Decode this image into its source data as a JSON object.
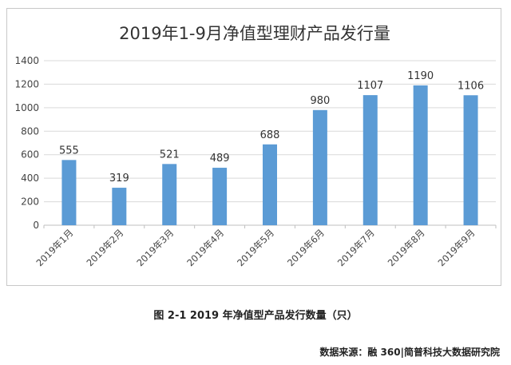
{
  "chart_data": {
    "type": "bar",
    "title": "2019年1-9月净值型理财产品发行量",
    "categories": [
      "2019年1月",
      "2019年2月",
      "2019年3月",
      "2019年4月",
      "2019年5月",
      "2019年6月",
      "2019年7月",
      "2019年8月",
      "2019年9月"
    ],
    "values": [
      555,
      319,
      521,
      489,
      688,
      980,
      1107,
      1190,
      1106
    ],
    "ylim": [
      0,
      1400
    ],
    "yticks": [
      0,
      200,
      400,
      600,
      800,
      1000,
      1200,
      1400
    ],
    "grid": true,
    "legend": "none",
    "bar_color": "#5b9bd5"
  },
  "caption": "图 2-1 2019 年净值型产品发行数量（只）",
  "source": "数据来源：融 360|简普科技大数据研究院"
}
